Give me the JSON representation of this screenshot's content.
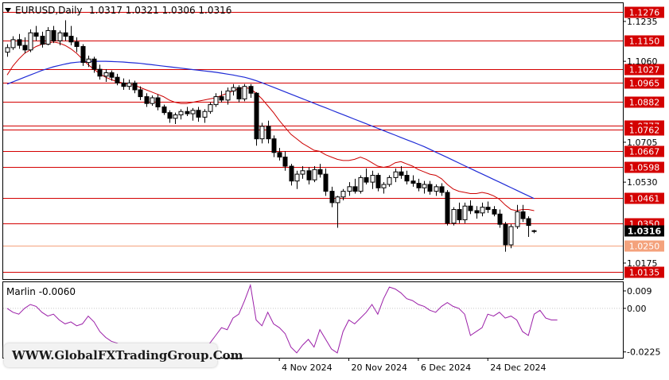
{
  "chart_header": {
    "symbol_tf": "EURUSD,Daily",
    "ohlc": "1.0317 1.0321 1.0306 1.0316"
  },
  "watermark": "WWW.GlobalFXTradingGroup.Com",
  "colors": {
    "bull": "#ffffff",
    "bear": "#000000",
    "level": "#d40000",
    "level_light": "#f4a27c",
    "ma_fast": "#cc0000",
    "ma_slow": "#1f2bd6",
    "oscillator": "#9b1fa8",
    "price_tag_bg": "#000000"
  },
  "chart_data": [
    {
      "type": "candlestick",
      "title": "EURUSD,Daily",
      "ylim": [
        1.0105,
        1.1315
      ],
      "y_ticks": [
        "1.1235",
        "1.1060",
        "1.0705",
        "1.0530",
        "1.0175"
      ],
      "x_ticks": [
        {
          "index": 47,
          "label": "4 Nov 2024"
        },
        {
          "index": 59,
          "label": "20 Nov 2024"
        },
        {
          "index": 71,
          "label": "6 Dec 2024"
        },
        {
          "index": 83,
          "label": "24 Dec 2024"
        }
      ],
      "levels": [
        {
          "value": 1.1276,
          "label": "1.1276",
          "style": "red"
        },
        {
          "value": 1.115,
          "label": "1.1150",
          "style": "red"
        },
        {
          "value": 1.1027,
          "label": "1.1027",
          "style": "red"
        },
        {
          "value": 1.0965,
          "label": "1.0965",
          "style": "red"
        },
        {
          "value": 1.0882,
          "label": "1.0882",
          "style": "red"
        },
        {
          "value": 1.0777,
          "label": "1.0777",
          "style": "red"
        },
        {
          "value": 1.0762,
          "label": "1.0762",
          "style": "red"
        },
        {
          "value": 1.0667,
          "label": "1.0667",
          "style": "red"
        },
        {
          "value": 1.0598,
          "label": "1.0598",
          "style": "red"
        },
        {
          "value": 1.0461,
          "label": "1.0461",
          "style": "red"
        },
        {
          "value": 1.035,
          "label": "1.0350",
          "style": "red"
        },
        {
          "value": 1.025,
          "label": "1.0250",
          "style": "light"
        },
        {
          "value": 1.0135,
          "label": "1.0135",
          "style": "red"
        }
      ],
      "current_price": {
        "value": 1.0316,
        "label": "1.0316"
      },
      "candles": [
        [
          1.11,
          1.1135,
          1.108,
          1.112
        ],
        [
          1.112,
          1.117,
          1.111,
          1.1155
        ],
        [
          1.1155,
          1.118,
          1.1115,
          1.113
        ],
        [
          1.113,
          1.1165,
          1.1095,
          1.111
        ],
        [
          1.111,
          1.12,
          1.11,
          1.1185
        ],
        [
          1.1185,
          1.1215,
          1.115,
          1.117
        ],
        [
          1.117,
          1.119,
          1.112,
          1.1135
        ],
        [
          1.1135,
          1.121,
          1.113,
          1.1195
        ],
        [
          1.1195,
          1.1215,
          1.114,
          1.115
        ],
        [
          1.115,
          1.1195,
          1.113,
          1.1185
        ],
        [
          1.1185,
          1.124,
          1.115,
          1.117
        ],
        [
          1.117,
          1.1215,
          1.113,
          1.1145
        ],
        [
          1.1145,
          1.1165,
          1.11,
          1.1125
        ],
        [
          1.1125,
          1.1135,
          1.104,
          1.1055
        ],
        [
          1.1055,
          1.1085,
          1.1035,
          1.107
        ],
        [
          1.107,
          1.108,
          1.101,
          1.1025
        ],
        [
          1.1025,
          1.1045,
          1.098,
          1.0995
        ],
        [
          1.0995,
          1.1025,
          1.097,
          1.101
        ],
        [
          1.101,
          1.102,
          1.0975,
          1.099
        ],
        [
          1.099,
          1.1005,
          1.0955,
          1.0965
        ],
        [
          1.0965,
          1.0985,
          1.0935,
          1.095
        ],
        [
          1.095,
          1.098,
          1.0935,
          1.0965
        ],
        [
          1.0965,
          1.0975,
          1.092,
          1.0935
        ],
        [
          1.0935,
          1.095,
          1.089,
          1.0905
        ],
        [
          1.0905,
          1.092,
          1.086,
          1.0875
        ],
        [
          1.0875,
          1.091,
          1.0865,
          1.09
        ],
        [
          1.09,
          1.0915,
          1.0845,
          1.086
        ],
        [
          1.086,
          1.087,
          1.0825,
          1.0835
        ],
        [
          1.0835,
          1.0845,
          1.079,
          1.081
        ],
        [
          1.081,
          1.0835,
          1.0785,
          1.0825
        ],
        [
          1.0825,
          1.085,
          1.0805,
          1.084
        ],
        [
          1.084,
          1.086,
          1.082,
          1.083
        ],
        [
          1.083,
          1.0855,
          1.08,
          1.0845
        ],
        [
          1.0845,
          1.086,
          1.0795,
          1.0815
        ],
        [
          1.0815,
          1.085,
          1.079,
          1.084
        ],
        [
          1.084,
          1.088,
          1.083,
          1.087
        ],
        [
          1.087,
          1.092,
          1.086,
          1.0905
        ],
        [
          1.0905,
          1.093,
          1.088,
          1.089
        ],
        [
          1.089,
          1.0945,
          1.087,
          1.093
        ],
        [
          1.093,
          1.096,
          1.091,
          1.0945
        ],
        [
          1.0945,
          1.0955,
          1.088,
          1.0895
        ],
        [
          1.0895,
          1.096,
          1.0885,
          1.095
        ],
        [
          1.095,
          1.096,
          1.09,
          1.092
        ],
        [
          1.092,
          1.0925,
          1.069,
          1.072
        ],
        [
          1.072,
          1.079,
          1.07,
          1.0775
        ],
        [
          1.0775,
          1.08,
          1.07,
          1.072
        ],
        [
          1.072,
          1.0735,
          1.064,
          1.066
        ],
        [
          1.066,
          1.068,
          1.0625,
          1.064
        ],
        [
          1.064,
          1.0665,
          1.058,
          1.06
        ],
        [
          1.06,
          1.061,
          1.0515,
          1.0535
        ],
        [
          1.0535,
          1.058,
          1.05,
          1.0565
        ],
        [
          1.0565,
          1.06,
          1.0545,
          1.058
        ],
        [
          1.058,
          1.0595,
          1.052,
          1.054
        ],
        [
          1.054,
          1.06,
          1.053,
          1.0585
        ],
        [
          1.0585,
          1.061,
          1.055,
          1.0565
        ],
        [
          1.0565,
          1.059,
          1.047,
          1.049
        ],
        [
          1.049,
          1.051,
          1.042,
          1.044
        ],
        [
          1.044,
          1.047,
          1.033,
          1.0465
        ],
        [
          1.0465,
          1.05,
          1.045,
          1.049
        ],
        [
          1.049,
          1.053,
          1.047,
          1.051
        ],
        [
          1.051,
          1.0545,
          1.048,
          1.049
        ],
        [
          1.049,
          1.056,
          1.048,
          1.055
        ],
        [
          1.055,
          1.059,
          1.052,
          1.053
        ],
        [
          1.053,
          1.058,
          1.05,
          1.056
        ],
        [
          1.056,
          1.057,
          1.049,
          1.0505
        ],
        [
          1.0505,
          1.053,
          1.048,
          1.052
        ],
        [
          1.052,
          1.056,
          1.051,
          1.055
        ],
        [
          1.055,
          1.059,
          1.053,
          1.0575
        ],
        [
          1.0575,
          1.06,
          1.0545,
          1.056
        ],
        [
          1.056,
          1.058,
          1.052,
          1.0535
        ],
        [
          1.0535,
          1.056,
          1.051,
          1.0525
        ],
        [
          1.0525,
          1.0545,
          1.049,
          1.0505
        ],
        [
          1.0505,
          1.0535,
          1.048,
          1.052
        ],
        [
          1.052,
          1.0535,
          1.0475,
          1.049
        ],
        [
          1.049,
          1.052,
          1.047,
          1.051
        ],
        [
          1.051,
          1.0525,
          1.047,
          1.0485
        ],
        [
          1.0485,
          1.0495,
          1.034,
          1.035
        ],
        [
          1.035,
          1.042,
          1.034,
          1.041
        ],
        [
          1.041,
          1.044,
          1.035,
          1.0365
        ],
        [
          1.0365,
          1.044,
          1.035,
          1.0425
        ],
        [
          1.0425,
          1.045,
          1.039,
          1.0405
        ],
        [
          1.0405,
          1.0425,
          1.037,
          1.0395
        ],
        [
          1.0395,
          1.044,
          1.038,
          1.042
        ],
        [
          1.042,
          1.0445,
          1.0395,
          1.041
        ],
        [
          1.041,
          1.0425,
          1.038,
          1.039
        ],
        [
          1.039,
          1.041,
          1.033,
          1.0345
        ],
        [
          1.0345,
          1.0355,
          1.0225,
          1.0255
        ],
        [
          1.0255,
          1.0345,
          1.024,
          1.0335
        ],
        [
          1.0335,
          1.043,
          1.0325,
          1.04
        ],
        [
          1.04,
          1.043,
          1.0355,
          1.037
        ],
        [
          1.037,
          1.038,
          1.029,
          1.034
        ],
        [
          1.0317,
          1.0321,
          1.0306,
          1.0316
        ]
      ],
      "ma_fast": [
        1.1,
        1.104,
        1.107,
        1.1095,
        1.111,
        1.1125,
        1.1135,
        1.114,
        1.1145,
        1.114,
        1.113,
        1.1115,
        1.1095,
        1.107,
        1.1045,
        1.1025,
        1.1005,
        1.099,
        1.098,
        1.097,
        1.0965,
        1.096,
        1.0955,
        1.0945,
        1.0935,
        1.0925,
        1.0915,
        1.0905,
        1.089,
        1.088,
        1.0875,
        1.0875,
        1.088,
        1.0885,
        1.089,
        1.0895,
        1.09,
        1.091,
        1.092,
        1.093,
        1.094,
        1.0945,
        1.094,
        1.092,
        1.0895,
        1.0865,
        1.0835,
        1.08,
        1.077,
        1.074,
        1.072,
        1.07,
        1.0685,
        1.067,
        1.0665,
        1.065,
        1.064,
        1.063,
        1.0625,
        1.0625,
        1.063,
        1.064,
        1.063,
        1.0615,
        1.06,
        1.0595,
        1.06,
        1.0615,
        1.062,
        1.061,
        1.06,
        1.0585,
        1.0575,
        1.0565,
        1.056,
        1.0545,
        1.052,
        1.05,
        1.049,
        1.0485,
        1.048,
        1.048,
        1.0485,
        1.048,
        1.047,
        1.0455,
        1.043,
        1.041,
        1.0405,
        1.041,
        1.041,
        1.0405
      ],
      "ma_slow": [
        1.096,
        1.097,
        1.098,
        1.099,
        1.1,
        1.101,
        1.102,
        1.1028,
        1.1036,
        1.1042,
        1.1048,
        1.1053,
        1.1056,
        1.1058,
        1.1059,
        1.106,
        1.106,
        1.106,
        1.1059,
        1.1058,
        1.1057,
        1.1055,
        1.1053,
        1.1051,
        1.1048,
        1.1045,
        1.1042,
        1.1039,
        1.1036,
        1.1033,
        1.103,
        1.1027,
        1.1024,
        1.1021,
        1.1018,
        1.1015,
        1.1012,
        1.1008,
        1.1004,
        1.1,
        1.0995,
        1.099,
        1.0983,
        1.0975,
        1.0966,
        1.0956,
        1.0946,
        1.0936,
        1.0926,
        1.0916,
        1.0906,
        1.0896,
        1.0886,
        1.0876,
        1.0866,
        1.0856,
        1.0846,
        1.0836,
        1.0826,
        1.0816,
        1.0806,
        1.0796,
        1.0786,
        1.0776,
        1.0766,
        1.0756,
        1.0746,
        1.0736,
        1.0726,
        1.0716,
        1.0706,
        1.0696,
        1.0686,
        1.0674,
        1.0662,
        1.065,
        1.0638,
        1.0626,
        1.0614,
        1.0602,
        1.059,
        1.0578,
        1.0566,
        1.0554,
        1.0542,
        1.053,
        1.0518,
        1.0506,
        1.0494,
        1.0482,
        1.047,
        1.0458
      ]
    },
    {
      "type": "line",
      "title": "Marlin -0.0060",
      "ylim": [
        -0.0255,
        0.0135
      ],
      "y_ticks": [
        "0.009",
        "0.00",
        "-0.0225"
      ],
      "series": [
        {
          "name": "Marlin",
          "values": [
            0.0,
            -0.002,
            -0.003,
            0.0,
            0.002,
            0.001,
            -0.002,
            -0.004,
            -0.003,
            -0.006,
            -0.008,
            -0.007,
            -0.009,
            -0.008,
            -0.004,
            -0.007,
            -0.012,
            -0.015,
            -0.017,
            -0.018,
            -0.02,
            -0.019,
            -0.021,
            -0.02,
            -0.022,
            -0.021,
            -0.023,
            -0.022,
            -0.024,
            -0.022,
            -0.023,
            -0.024,
            -0.025,
            -0.026,
            -0.022,
            -0.018,
            -0.014,
            -0.01,
            -0.011,
            -0.005,
            -0.003,
            0.004,
            0.012,
            -0.006,
            -0.009,
            -0.002,
            -0.008,
            -0.01,
            -0.013,
            -0.02,
            -0.023,
            -0.019,
            -0.016,
            -0.02,
            -0.011,
            -0.016,
            -0.021,
            -0.023,
            -0.012,
            -0.006,
            -0.008,
            -0.005,
            -0.002,
            0.002,
            -0.003,
            0.005,
            0.011,
            0.01,
            0.008,
            0.005,
            0.004,
            0.002,
            0.001,
            -0.001,
            -0.002,
            0.001,
            0.003,
            0.001,
            0.0,
            -0.003,
            -0.014,
            -0.012,
            -0.01,
            -0.003,
            -0.004,
            -0.002,
            -0.005,
            -0.004,
            -0.006,
            -0.012,
            -0.014,
            -0.003,
            -0.001,
            -0.005,
            -0.006,
            -0.006
          ]
        }
      ]
    }
  ]
}
